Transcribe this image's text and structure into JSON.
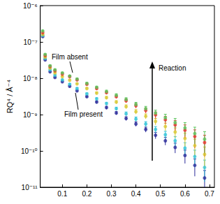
{
  "chart_data": {
    "type": "scatter",
    "y_label": "RQ⁴ / Å⁻⁴",
    "annotations": [
      "Film absent",
      "Film present",
      "Reaction"
    ],
    "log": "y",
    "grid": false,
    "xlim": [
      0.01,
      0.72
    ],
    "xticks": [
      0.1,
      0.2,
      0.3,
      0.4,
      0.5,
      0.6,
      0.7
    ],
    "ylim": [
      1e-11,
      1e-06
    ],
    "yticks": [
      {
        "value": 1e-11,
        "label": "10⁻¹¹"
      },
      {
        "value": 1e-10,
        "label": "10⁻¹⁰"
      },
      {
        "value": 1e-09,
        "label": "10⁻⁹"
      },
      {
        "value": 1e-08,
        "label": "10⁻⁸"
      },
      {
        "value": 1e-07,
        "label": "10⁻⁷"
      },
      {
        "value": 1e-06,
        "label": "10⁻⁶"
      }
    ],
    "x": [
      0.02,
      0.03,
      0.05,
      0.07,
      0.1,
      0.13,
      0.16,
      0.2,
      0.24,
      0.28,
      0.32,
      0.36,
      0.4,
      0.44,
      0.48,
      0.52,
      0.56,
      0.6,
      0.64,
      0.68
    ],
    "series": [
      {
        "color": "#2b2b9a",
        "values": [
          1.4e-07,
          3.2e-08,
          1.5e-08,
          1.05e-08,
          8e-09,
          6e-09,
          4.5e-09,
          3.1e-09,
          2.2e-09,
          1.55e-09,
          1.1e-09,
          7.8e-10,
          5.5e-10,
          3.9e-10,
          2.7e-10,
          1.9e-10,
          1.25e-10,
          7.5e-11,
          4e-11,
          1.8e-11
        ],
        "errors": [
          7e-09,
          1.6e-09,
          7.5e-10,
          5.3e-10,
          4e-10,
          3e-10,
          2.7e-10,
          2.2e-10,
          1.8e-10,
          1.4e-10,
          1.1e-10,
          9.4e-11,
          7.7e-11,
          6.2e-11,
          5.4e-11,
          4.6e-11,
          3.8e-11,
          3e-11,
          2e-11,
          1.1e-11
        ]
      },
      {
        "color": "#33c4d8",
        "values": [
          1.5e-07,
          3.5e-08,
          1.7e-08,
          1.2e-08,
          9e-09,
          6.8e-09,
          5.2e-09,
          3.7e-09,
          2.7e-09,
          2e-09,
          1.45e-09,
          1.05e-09,
          7.5e-10,
          5.5e-10,
          3.9e-10,
          2.8e-10,
          1.9e-10,
          1.2e-10,
          7e-11,
          3.5e-11
        ],
        "errors": [
          7.5e-09,
          1.8e-09,
          8.5e-10,
          6e-10,
          4.5e-10,
          3.4e-10,
          3.1e-10,
          2.6e-10,
          2.2e-10,
          1.8e-10,
          1.5e-10,
          1.3e-10,
          1.05e-10,
          8.8e-11,
          7.8e-11,
          6.7e-11,
          5.7e-11,
          4.8e-11,
          3.5e-11,
          2.1e-11
        ]
      },
      {
        "color": "#d8c830",
        "values": [
          1.6e-07,
          3.8e-08,
          1.9e-08,
          1.4e-08,
          1.1e-08,
          8.8e-09,
          7e-09,
          5.2e-09,
          3.9e-09,
          2.9e-09,
          2.2e-09,
          1.65e-09,
          1.2e-09,
          9e-10,
          6.5e-10,
          4.7e-10,
          3.3e-10,
          2.2e-10,
          1.4e-10,
          8e-11
        ],
        "errors": [
          8e-09,
          1.9e-09,
          9.5e-10,
          7e-10,
          5.5e-10,
          4.4e-10,
          4.2e-10,
          3.6e-10,
          3.1e-10,
          2.6e-10,
          2.2e-10,
          2e-10,
          1.7e-10,
          1.4e-10,
          1.3e-10,
          1.1e-10,
          1e-10,
          8.8e-11,
          7e-11,
          4.8e-11
        ]
      },
      {
        "color": "#e8302a",
        "values": [
          1.8e-07,
          4.2e-08,
          2.1e-08,
          1.6e-08,
          1.3e-08,
          1.1e-08,
          9e-09,
          6.8e-09,
          5.2e-09,
          4e-09,
          3.1e-09,
          2.4e-09,
          1.75e-09,
          1.3e-09,
          9.8e-10,
          7.2e-10,
          5.2e-10,
          3.7e-10,
          2.5e-10,
          1.7e-10
        ],
        "errors": [
          9e-09,
          2.1e-09,
          1.1e-09,
          8e-10,
          6.5e-10,
          5.5e-10,
          5.4e-10,
          4.8e-10,
          4.2e-10,
          3.6e-10,
          3.1e-10,
          2.9e-10,
          2.5e-10,
          2.1e-10,
          2e-10,
          1.7e-10,
          1.6e-10,
          1.5e-10,
          1.3e-10,
          1e-10
        ]
      },
      {
        "color": "#5cc45c",
        "values": [
          2e-07,
          4.5e-08,
          2.2e-08,
          1.7e-08,
          1.4e-08,
          1.15e-08,
          9.5e-09,
          7.2e-09,
          5.6e-09,
          4.3e-09,
          3.4e-09,
          2.6e-09,
          1.9e-09,
          1.45e-09,
          1.1e-09,
          8.2e-10,
          6e-10,
          4.3e-10,
          3e-10,
          2.1e-10
        ],
        "errors": [
          1e-08,
          2.3e-09,
          1.1e-09,
          8.5e-10,
          7e-10,
          5.8e-10,
          5.7e-10,
          5e-10,
          4.5e-10,
          3.9e-10,
          3.4e-10,
          3.1e-10,
          2.7e-10,
          2.3e-10,
          2.2e-10,
          2e-10,
          1.8e-10,
          1.7e-10,
          1.5e-10,
          1.3e-10
        ]
      }
    ]
  }
}
